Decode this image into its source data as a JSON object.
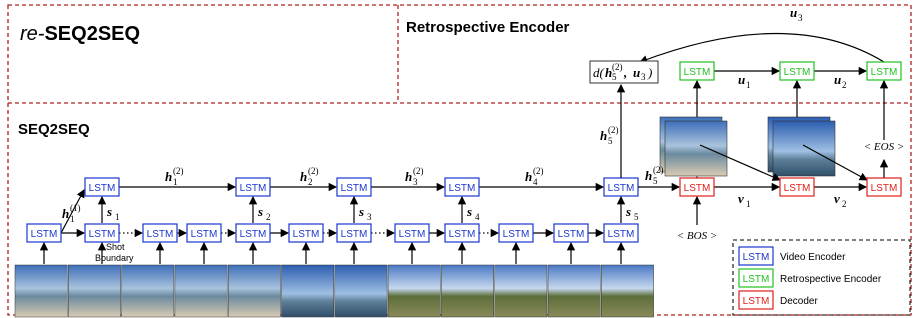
{
  "title_prefix": "re-",
  "title": "SEQ2SEQ",
  "retro_title": "Retrospective Encoder",
  "seq_title": "SEQ2SEQ",
  "lstm": "LSTM",
  "shot_boundary": [
    "Shot",
    "Boundary"
  ],
  "h_first": {
    "base": "h",
    "sub": "1",
    "sup": "(1)"
  },
  "h_top": [
    {
      "base": "h",
      "sub": "1",
      "sup": "(2)"
    },
    {
      "base": "h",
      "sub": "2",
      "sup": "(2)"
    },
    {
      "base": "h",
      "sub": "3",
      "sup": "(2)"
    },
    {
      "base": "h",
      "sub": "4",
      "sup": "(2)"
    }
  ],
  "h5_up": {
    "base": "h",
    "sub": "5",
    "sup": "(2)"
  },
  "h5_right": {
    "base": "h",
    "sub": "5",
    "sup": "(2)"
  },
  "s": [
    {
      "base": "s",
      "sub": "1"
    },
    {
      "base": "s",
      "sub": "2"
    },
    {
      "base": "s",
      "sub": "3"
    },
    {
      "base": "s",
      "sub": "4"
    },
    {
      "base": "s",
      "sub": "5"
    }
  ],
  "v": [
    {
      "base": "v",
      "sub": "1"
    },
    {
      "base": "v",
      "sub": "2"
    }
  ],
  "u": [
    {
      "base": "u",
      "sub": "1"
    },
    {
      "base": "u",
      "sub": "2"
    },
    {
      "base": "u",
      "sub": "3"
    }
  ],
  "distance": {
    "pre": "d(",
    "base": "h",
    "sub": "5",
    "sup": "(2)",
    "mid": ", ",
    "base2": "u",
    "sub2": "3",
    "post": ")"
  },
  "bos": "< BOS >",
  "eos": "< EOS >",
  "legend": [
    {
      "label": "Video Encoder"
    },
    {
      "label": "Retrospective Encoder"
    },
    {
      "label": "Decoder"
    }
  ]
}
